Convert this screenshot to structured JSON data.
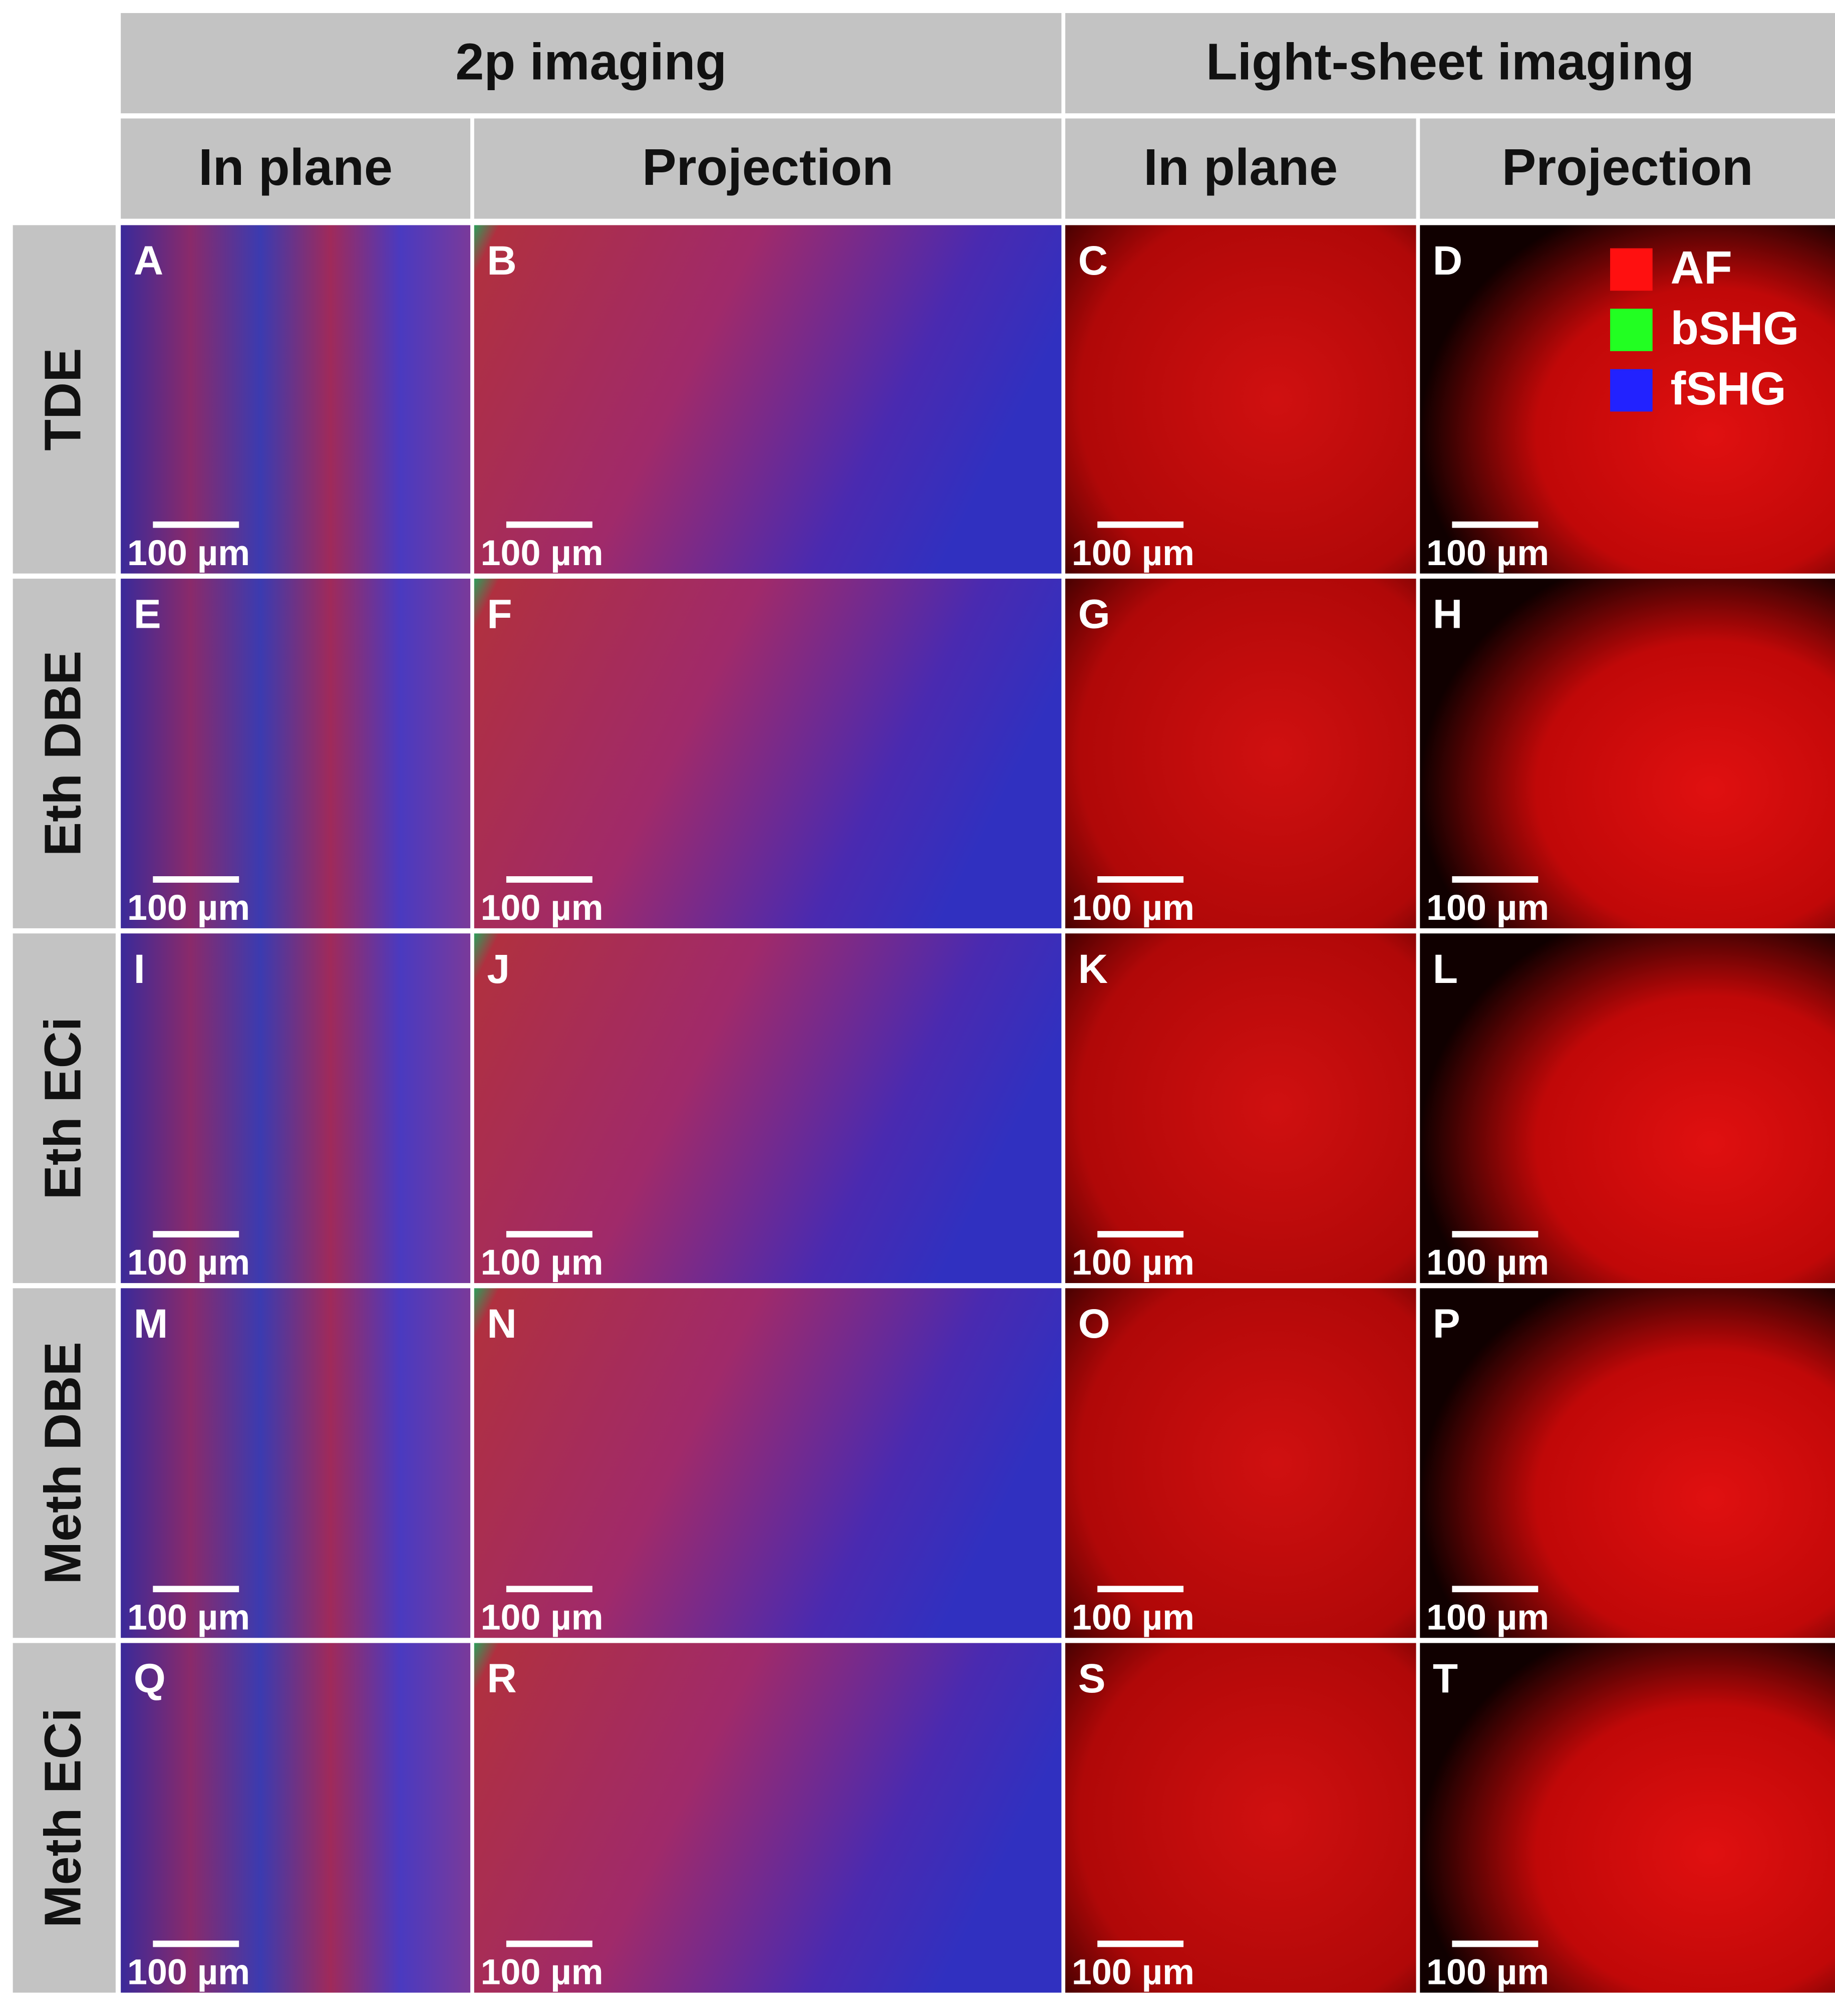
{
  "header": {
    "groups": [
      "2p imaging",
      "Light-sheet imaging"
    ],
    "columns": [
      "In plane",
      "Projection",
      "In plane",
      "Projection"
    ]
  },
  "legend": [
    {
      "label": "AF",
      "color": "#ff1010"
    },
    {
      "label": "bSHG",
      "color": "#22ff22"
    },
    {
      "label": "fSHG",
      "color": "#2222ff"
    }
  ],
  "rows": [
    {
      "label": "TDE",
      "panels": [
        {
          "letter": "A",
          "scale": "100 µm"
        },
        {
          "letter": "B",
          "scale": "100 µm"
        },
        {
          "letter": "C",
          "scale": "100 µm"
        },
        {
          "letter": "D",
          "scale": "100 µm"
        }
      ]
    },
    {
      "label": "Eth DBE",
      "panels": [
        {
          "letter": "E",
          "scale": "100 µm"
        },
        {
          "letter": "F",
          "scale": "100 µm"
        },
        {
          "letter": "G",
          "scale": "100 µm"
        },
        {
          "letter": "H",
          "scale": "100 µm"
        }
      ]
    },
    {
      "label": "Eth ECi",
      "panels": [
        {
          "letter": "I",
          "scale": "100 µm"
        },
        {
          "letter": "J",
          "scale": "100 µm"
        },
        {
          "letter": "K",
          "scale": "100 µm"
        },
        {
          "letter": "L",
          "scale": "100 µm"
        }
      ]
    },
    {
      "label": "Meth DBE",
      "panels": [
        {
          "letter": "M",
          "scale": "100 µm"
        },
        {
          "letter": "N",
          "scale": "100 µm"
        },
        {
          "letter": "O",
          "scale": "100 µm"
        },
        {
          "letter": "P",
          "scale": "100 µm"
        }
      ]
    },
    {
      "label": "Meth ECi",
      "panels": [
        {
          "letter": "Q",
          "scale": "100 µm"
        },
        {
          "letter": "R",
          "scale": "100 µm"
        },
        {
          "letter": "S",
          "scale": "100 µm"
        },
        {
          "letter": "T",
          "scale": "100 µm"
        }
      ]
    }
  ]
}
